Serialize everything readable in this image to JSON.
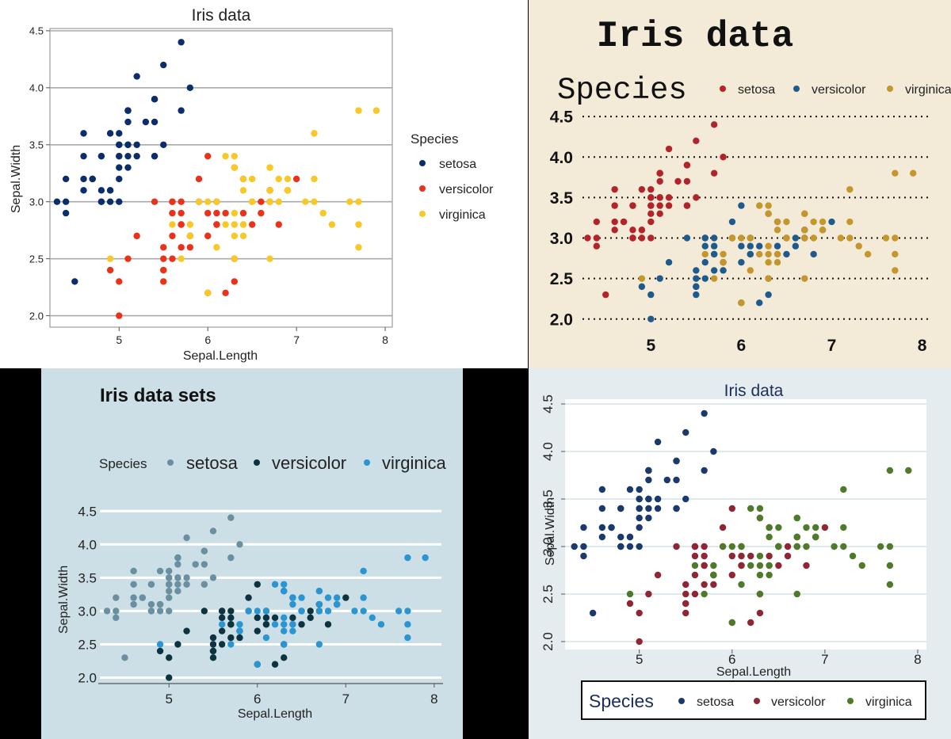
{
  "iris": {
    "setosa": [
      [
        5.1,
        3.5
      ],
      [
        4.9,
        3.0
      ],
      [
        4.7,
        3.2
      ],
      [
        4.6,
        3.1
      ],
      [
        5.0,
        3.6
      ],
      [
        5.4,
        3.9
      ],
      [
        4.6,
        3.4
      ],
      [
        5.0,
        3.4
      ],
      [
        4.4,
        2.9
      ],
      [
        4.9,
        3.1
      ],
      [
        5.4,
        3.7
      ],
      [
        4.8,
        3.4
      ],
      [
        4.8,
        3.0
      ],
      [
        4.3,
        3.0
      ],
      [
        5.8,
        4.0
      ],
      [
        5.7,
        4.4
      ],
      [
        5.4,
        3.9
      ],
      [
        5.1,
        3.5
      ],
      [
        5.7,
        3.8
      ],
      [
        5.1,
        3.8
      ],
      [
        5.4,
        3.4
      ],
      [
        5.1,
        3.7
      ],
      [
        4.6,
        3.6
      ],
      [
        5.1,
        3.3
      ],
      [
        4.8,
        3.4
      ],
      [
        5.0,
        3.0
      ],
      [
        5.0,
        3.4
      ],
      [
        5.2,
        3.5
      ],
      [
        5.2,
        3.4
      ],
      [
        4.7,
        3.2
      ],
      [
        4.8,
        3.1
      ],
      [
        5.4,
        3.4
      ],
      [
        5.2,
        4.1
      ],
      [
        5.5,
        4.2
      ],
      [
        4.9,
        3.1
      ],
      [
        5.0,
        3.2
      ],
      [
        5.5,
        3.5
      ],
      [
        4.9,
        3.6
      ],
      [
        4.4,
        3.0
      ],
      [
        5.1,
        3.4
      ],
      [
        5.0,
        3.5
      ],
      [
        4.5,
        2.3
      ],
      [
        4.4,
        3.2
      ],
      [
        5.0,
        3.5
      ],
      [
        5.1,
        3.8
      ],
      [
        4.8,
        3.0
      ],
      [
        5.1,
        3.8
      ],
      [
        4.6,
        3.2
      ],
      [
        5.3,
        3.7
      ],
      [
        5.0,
        3.3
      ]
    ],
    "versicolor": [
      [
        7.0,
        3.2
      ],
      [
        6.4,
        3.2
      ],
      [
        6.9,
        3.1
      ],
      [
        5.5,
        2.3
      ],
      [
        6.5,
        2.8
      ],
      [
        5.7,
        2.8
      ],
      [
        6.3,
        3.3
      ],
      [
        4.9,
        2.4
      ],
      [
        6.6,
        2.9
      ],
      [
        5.2,
        2.7
      ],
      [
        5.0,
        2.0
      ],
      [
        5.9,
        3.0
      ],
      [
        6.0,
        2.2
      ],
      [
        6.1,
        2.9
      ],
      [
        5.6,
        2.9
      ],
      [
        6.7,
        3.1
      ],
      [
        5.6,
        3.0
      ],
      [
        5.8,
        2.7
      ],
      [
        6.2,
        2.2
      ],
      [
        5.6,
        2.5
      ],
      [
        5.9,
        3.2
      ],
      [
        6.1,
        2.8
      ],
      [
        6.3,
        2.5
      ],
      [
        6.1,
        2.8
      ],
      [
        6.4,
        2.9
      ],
      [
        6.6,
        3.0
      ],
      [
        6.8,
        2.8
      ],
      [
        6.7,
        3.0
      ],
      [
        6.0,
        2.9
      ],
      [
        5.7,
        2.6
      ],
      [
        5.5,
        2.4
      ],
      [
        5.5,
        2.4
      ],
      [
        5.8,
        2.7
      ],
      [
        6.0,
        2.7
      ],
      [
        5.4,
        3.0
      ],
      [
        6.0,
        3.4
      ],
      [
        6.7,
        3.1
      ],
      [
        6.3,
        2.3
      ],
      [
        5.6,
        3.0
      ],
      [
        5.5,
        2.5
      ],
      [
        5.5,
        2.6
      ],
      [
        6.1,
        3.0
      ],
      [
        5.8,
        2.6
      ],
      [
        5.0,
        2.3
      ],
      [
        5.6,
        2.7
      ],
      [
        5.7,
        3.0
      ],
      [
        5.7,
        2.9
      ],
      [
        6.2,
        2.9
      ],
      [
        5.1,
        2.5
      ],
      [
        5.7,
        2.8
      ]
    ],
    "virginica": [
      [
        6.3,
        3.3
      ],
      [
        5.8,
        2.7
      ],
      [
        7.1,
        3.0
      ],
      [
        6.3,
        2.9
      ],
      [
        6.5,
        3.0
      ],
      [
        7.6,
        3.0
      ],
      [
        4.9,
        2.5
      ],
      [
        7.3,
        2.9
      ],
      [
        6.7,
        2.5
      ],
      [
        7.2,
        3.6
      ],
      [
        6.5,
        3.2
      ],
      [
        6.4,
        2.7
      ],
      [
        6.8,
        3.0
      ],
      [
        5.7,
        2.5
      ],
      [
        5.8,
        2.8
      ],
      [
        6.4,
        3.2
      ],
      [
        6.5,
        3.0
      ],
      [
        7.7,
        3.8
      ],
      [
        7.7,
        2.6
      ],
      [
        6.0,
        2.2
      ],
      [
        6.9,
        3.2
      ],
      [
        5.6,
        2.8
      ],
      [
        7.7,
        2.8
      ],
      [
        6.3,
        2.7
      ],
      [
        6.7,
        3.3
      ],
      [
        7.2,
        3.2
      ],
      [
        6.2,
        2.8
      ],
      [
        6.1,
        3.0
      ],
      [
        6.4,
        2.8
      ],
      [
        7.2,
        3.0
      ],
      [
        7.4,
        2.8
      ],
      [
        7.9,
        3.8
      ],
      [
        6.4,
        2.8
      ],
      [
        6.3,
        2.8
      ],
      [
        6.1,
        2.6
      ],
      [
        7.7,
        3.0
      ],
      [
        6.3,
        3.4
      ],
      [
        6.4,
        3.1
      ],
      [
        6.0,
        3.0
      ],
      [
        6.9,
        3.1
      ],
      [
        6.7,
        3.1
      ],
      [
        6.9,
        3.1
      ],
      [
        5.8,
        2.7
      ],
      [
        6.8,
        3.2
      ],
      [
        6.7,
        3.3
      ],
      [
        6.7,
        3.0
      ],
      [
        6.3,
        2.5
      ],
      [
        6.5,
        3.0
      ],
      [
        6.2,
        3.4
      ],
      [
        5.9,
        3.0
      ]
    ]
  },
  "chart_data": [
    {
      "type": "scatter",
      "title": "Iris data",
      "xlabel": "Sepal.Length",
      "ylabel": "Sepal.Width",
      "xticks": [
        5,
        6,
        7,
        8
      ],
      "yticks": [
        "2.0",
        "2.5",
        "3.0",
        "3.5",
        "4.0",
        "4.5"
      ],
      "xlim": [
        4.22,
        8.08
      ],
      "ylim": [
        1.9,
        4.52
      ],
      "legend_title": "Species",
      "legend_position": "right",
      "grid": "horizontal",
      "series": [
        {
          "name": "setosa",
          "color": "#0c2d6b",
          "data_ref": "iris.setosa"
        },
        {
          "name": "versicolor",
          "color": "#e8321a",
          "data_ref": "iris.versicolor"
        },
        {
          "name": "virginica",
          "color": "#f7c826",
          "data_ref": "iris.virginica"
        }
      ]
    },
    {
      "type": "scatter",
      "title": "Iris data",
      "xlabel": "",
      "ylabel": "",
      "xticks": [
        5,
        6,
        7,
        8
      ],
      "yticks": [
        "2.0",
        "2.5",
        "3.0",
        "3.5",
        "4.0",
        "4.5"
      ],
      "xlim": [
        4.2,
        8.1
      ],
      "ylim": [
        1.9,
        4.55
      ],
      "legend_title": "Species",
      "legend_position": "top",
      "grid": "dotted-horizontal",
      "series": [
        {
          "name": "setosa",
          "color": "#b3242a",
          "data_ref": "iris.setosa"
        },
        {
          "name": "versicolor",
          "color": "#1f5a8c",
          "data_ref": "iris.versicolor"
        },
        {
          "name": "virginica",
          "color": "#c4962b",
          "data_ref": "iris.virginica"
        }
      ]
    },
    {
      "type": "scatter",
      "title": "Iris data sets",
      "xlabel": "Sepal.Length",
      "ylabel": "Sepal.Width",
      "xticks": [
        5,
        6,
        7,
        8
      ],
      "yticks": [
        "2.0",
        "2.5",
        "3.0",
        "3.5",
        "4.0",
        "4.5"
      ],
      "xlim": [
        4.2,
        8.1
      ],
      "ylim": [
        1.9,
        4.55
      ],
      "legend_title": "Species",
      "legend_position": "top",
      "grid": "horizontal",
      "series": [
        {
          "name": "setosa",
          "color": "#6a8fa0",
          "data_ref": "iris.setosa"
        },
        {
          "name": "versicolor",
          "color": "#0b3340",
          "data_ref": "iris.versicolor"
        },
        {
          "name": "virginica",
          "color": "#2a95d0",
          "data_ref": "iris.virginica"
        }
      ]
    },
    {
      "type": "scatter",
      "title": "Iris data",
      "xlabel": "Sepal.Length",
      "ylabel": "Sepal.Width",
      "xticks": [
        5,
        6,
        7,
        8
      ],
      "yticks": [
        "2.0",
        "2.5",
        "3.0",
        "3.5",
        "4.0",
        "4.5"
      ],
      "xlim": [
        4.2,
        8.0
      ],
      "ylim": [
        1.9,
        4.55
      ],
      "legend_title": "Species",
      "legend_position": "bottom",
      "grid": "horizontal",
      "series": [
        {
          "name": "setosa",
          "color": "#1b3a6b",
          "data_ref": "iris.setosa"
        },
        {
          "name": "versicolor",
          "color": "#8e2634",
          "data_ref": "iris.versicolor"
        },
        {
          "name": "virginica",
          "color": "#4f7a2a",
          "data_ref": "iris.virginica"
        }
      ]
    }
  ]
}
